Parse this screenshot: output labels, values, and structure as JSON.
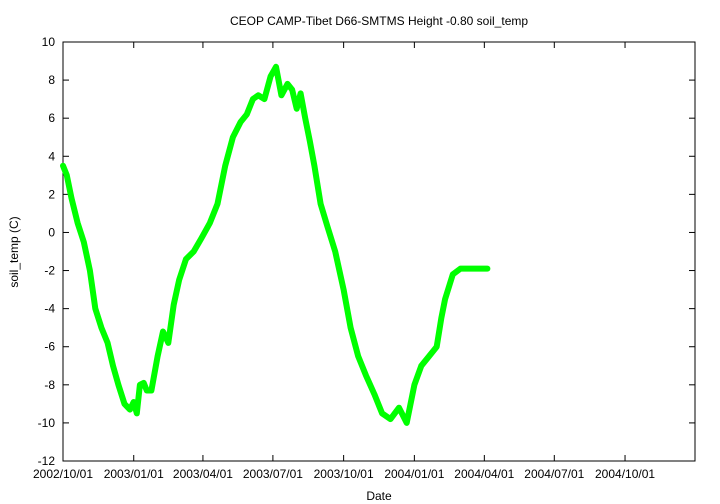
{
  "chart_data": {
    "type": "line",
    "title": "CEOP CAMP-Tibet D66-SMTMS Height -0.80 soil_temp",
    "xlabel": "Date",
    "ylabel": "soil_temp (C)",
    "ylim": [
      -12,
      10
    ],
    "xlim": [
      "2002-10-01",
      "2004-12-31"
    ],
    "grid": false,
    "legend": "none",
    "y_ticks": [
      -12,
      -10,
      -8,
      -6,
      -4,
      -2,
      0,
      2,
      4,
      6,
      8,
      10
    ],
    "y_tick_labels": [
      "-12",
      "-10",
      "-8",
      "-6",
      "-4",
      "-2",
      "0",
      "2",
      "4",
      "6",
      "8",
      "10"
    ],
    "x_ticks": [
      "2002-10-01",
      "2003-01-01",
      "2003-04-01",
      "2003-07-01",
      "2003-10-01",
      "2004-01-01",
      "2004-04-01",
      "2004-07-01",
      "2004-10-01"
    ],
    "x_tick_labels": [
      "2002/10/01",
      "2003/01/01",
      "2003/04/01",
      "2003/07/01",
      "2003/10/01",
      "2004/01/01",
      "2004/04/01",
      "2004/07/01",
      "2004/10/01"
    ],
    "series_color": "#00ff00",
    "series": [
      {
        "x": [
          "2002-10-01",
          "2002-10-06",
          "2002-10-12",
          "2002-10-20",
          "2002-10-28",
          "2002-11-05",
          "2002-11-12",
          "2002-11-20",
          "2002-11-28",
          "2002-12-05",
          "2002-12-12",
          "2002-12-20",
          "2002-12-27",
          "2003-01-01",
          "2003-01-05",
          "2003-01-09",
          "2003-01-14",
          "2003-01-18",
          "2003-01-24",
          "2003-02-01",
          "2003-02-08",
          "2003-02-15",
          "2003-02-22",
          "2003-03-01",
          "2003-03-10",
          "2003-03-20",
          "2003-03-30",
          "2003-04-10",
          "2003-04-20",
          "2003-04-30",
          "2003-05-10",
          "2003-05-20",
          "2003-05-28",
          "2003-06-05",
          "2003-06-12",
          "2003-06-20",
          "2003-06-28",
          "2003-07-05",
          "2003-07-12",
          "2003-07-20",
          "2003-07-26",
          "2003-08-01",
          "2003-08-06",
          "2003-08-12",
          "2003-08-18",
          "2003-08-24",
          "2003-09-01",
          "2003-09-10",
          "2003-09-20",
          "2003-10-01",
          "2003-10-10",
          "2003-10-20",
          "2003-10-30",
          "2003-11-10",
          "2003-11-20",
          "2003-12-01",
          "2003-12-12",
          "2003-12-22",
          "2004-01-01",
          "2004-01-10",
          "2004-01-20",
          "2004-01-30",
          "2004-02-05",
          "2004-02-10",
          "2004-02-20",
          "2004-03-01",
          "2004-03-10",
          "2004-03-20",
          "2004-03-28",
          "2004-04-05"
        ],
        "y": [
          3.5,
          3.0,
          1.8,
          0.5,
          -0.5,
          -2.0,
          -4.0,
          -5.0,
          -5.8,
          -7.0,
          -8.0,
          -9.0,
          -9.3,
          -8.9,
          -9.5,
          -8.0,
          -7.9,
          -8.3,
          -8.3,
          -6.5,
          -5.2,
          -5.8,
          -3.8,
          -2.5,
          -1.4,
          -1.0,
          -0.3,
          0.5,
          1.5,
          3.5,
          5.0,
          5.8,
          6.2,
          7.0,
          7.2,
          7.0,
          8.2,
          8.7,
          7.2,
          7.8,
          7.5,
          6.5,
          7.3,
          6.0,
          4.8,
          3.5,
          1.5,
          0.3,
          -1.0,
          -3.0,
          -5.0,
          -6.5,
          -7.5,
          -8.5,
          -9.5,
          -9.8,
          -9.2,
          -10.0,
          -8.0,
          -7.0,
          -6.5,
          -6.0,
          -4.5,
          -3.5,
          -2.2,
          -1.9,
          -1.9,
          -1.9,
          -1.9,
          -1.9
        ]
      }
    ]
  }
}
